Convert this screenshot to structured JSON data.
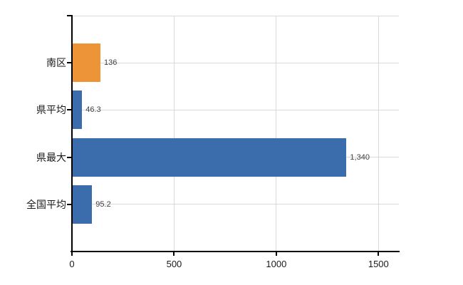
{
  "chart_data": {
    "type": "bar",
    "orientation": "horizontal",
    "title": "",
    "categories": [
      "南区",
      "県平均",
      "県最大",
      "全国平均"
    ],
    "values": [
      136,
      46.3,
      1340,
      95.2
    ],
    "value_labels": [
      "136",
      "46.3",
      "1,340",
      "95.2"
    ],
    "series_colors": [
      "#ED9438",
      "#3B6CAB",
      "#3B6CAB",
      "#3B6CAB"
    ],
    "highlight_category": "南区",
    "xlim": [
      0,
      1600
    ],
    "x_ticks": [
      0,
      500,
      1000,
      1500
    ],
    "x_tick_labels": [
      "0",
      "500",
      "1000",
      "1500"
    ],
    "grid": true,
    "legend": false,
    "colors": {
      "highlight_bar": "#ED9438",
      "default_bar": "#3B6CAB",
      "grid": "#D9D9D9",
      "axis": "#000000",
      "value_label": "#404040",
      "tick_label": "#1A1A1A",
      "background": "#FFFFFF"
    }
  }
}
